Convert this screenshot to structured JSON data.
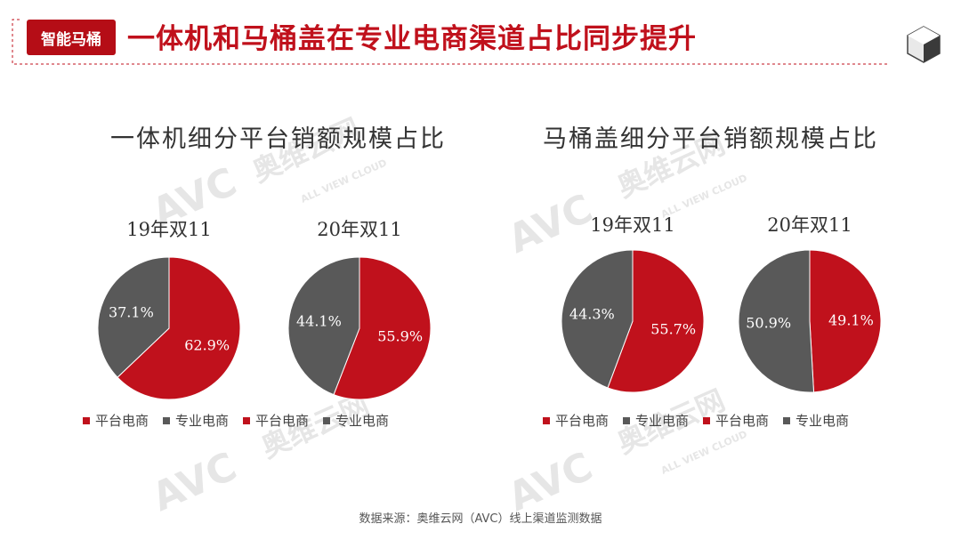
{
  "header": {
    "tag": "智能马桶",
    "title": "一体机和马桶盖在专业电商渠道占比同步提升"
  },
  "colors": {
    "platform": "#c0111c",
    "professional": "#595959",
    "accent": "#b50d16"
  },
  "sections": [
    {
      "title": "一体机细分平台销额规模占比"
    },
    {
      "title": "马桶盖细分平台销额规模占比"
    }
  ],
  "legend": {
    "platform": "平台电商",
    "professional": "专业电商"
  },
  "source": "数据来源：奥维云网（AVC）线上渠道监测数据",
  "watermark": {
    "brand": "奥维云网",
    "logo": "AVC",
    "sub": "ALL VIEW CLOUD"
  },
  "chart_data": [
    {
      "type": "pie",
      "title": "19年双11",
      "labels": [
        "平台电商",
        "专业电商"
      ],
      "values": [
        62.9,
        37.1
      ],
      "value_labels": [
        "62.9%",
        "37.1%"
      ]
    },
    {
      "type": "pie",
      "title": "20年双11",
      "labels": [
        "平台电商",
        "专业电商"
      ],
      "values": [
        55.9,
        44.1
      ],
      "value_labels": [
        "55.9%",
        "44.1%"
      ]
    },
    {
      "type": "pie",
      "title": "19年双11",
      "labels": [
        "平台电商",
        "专业电商"
      ],
      "values": [
        55.7,
        44.3
      ],
      "value_labels": [
        "55.7%",
        "44.3%"
      ]
    },
    {
      "type": "pie",
      "title": "20年双11",
      "labels": [
        "平台电商",
        "专业电商"
      ],
      "values": [
        49.1,
        50.9
      ],
      "value_labels": [
        "49.1%",
        "50.9%"
      ]
    }
  ]
}
